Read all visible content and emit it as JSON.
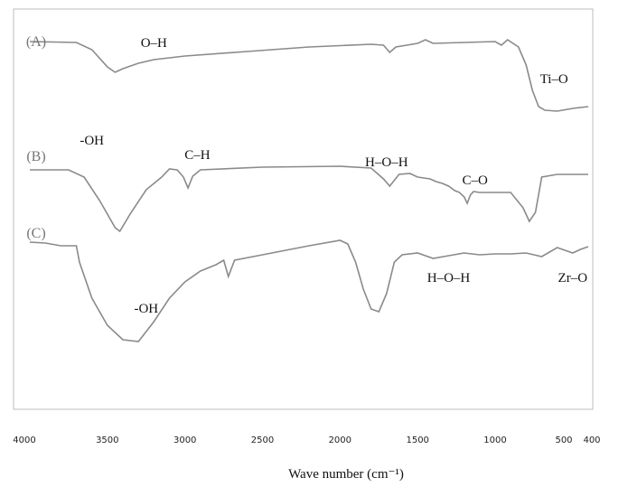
{
  "chart_data": {
    "type": "line",
    "xlabel": "Wave number (cm⁻¹)",
    "ylabel": "",
    "xlim": [
      4000,
      400
    ],
    "x_reversed": true,
    "grid": false,
    "ticks": [
      {
        "value": 4000,
        "label": "4000"
      },
      {
        "value": 3500,
        "label": "3500"
      },
      {
        "value": 3000,
        "label": "3000"
      },
      {
        "value": 2500,
        "label": "2500"
      },
      {
        "value": 2000,
        "label": "2000"
      },
      {
        "value": 1500,
        "label": "1500"
      },
      {
        "value": 1000,
        "label": "1000"
      },
      {
        "value": 500,
        "label": "500"
      },
      {
        "value": 400,
        "label": "400"
      }
    ],
    "series": [
      {
        "name": "(A)",
        "points": [
          [
            4000,
            46
          ],
          [
            3700,
            47
          ],
          [
            3600,
            55
          ],
          [
            3500,
            74
          ],
          [
            3450,
            80
          ],
          [
            3400,
            76
          ],
          [
            3300,
            70
          ],
          [
            3200,
            66
          ],
          [
            3000,
            62
          ],
          [
            2600,
            57
          ],
          [
            2200,
            52
          ],
          [
            1800,
            49
          ],
          [
            1720,
            50
          ],
          [
            1680,
            58
          ],
          [
            1640,
            52
          ],
          [
            1500,
            48
          ],
          [
            1450,
            44
          ],
          [
            1400,
            48
          ],
          [
            1200,
            47
          ],
          [
            1000,
            46
          ],
          [
            960,
            50
          ],
          [
            920,
            44
          ],
          [
            850,
            52
          ],
          [
            800,
            72
          ],
          [
            760,
            100
          ],
          [
            720,
            118
          ],
          [
            680,
            122
          ],
          [
            600,
            123
          ],
          [
            500,
            120
          ],
          [
            400,
            118
          ]
        ],
        "annotations": [
          {
            "text": "O–H",
            "x": 3200,
            "y": 52
          },
          {
            "text": "Ti–O",
            "x": 620,
            "y": 92
          }
        ]
      },
      {
        "name": "(B)",
        "points": [
          [
            4000,
            188
          ],
          [
            3750,
            188
          ],
          [
            3650,
            196
          ],
          [
            3550,
            222
          ],
          [
            3450,
            252
          ],
          [
            3420,
            256
          ],
          [
            3350,
            236
          ],
          [
            3250,
            210
          ],
          [
            3150,
            196
          ],
          [
            3100,
            187
          ],
          [
            3050,
            188
          ],
          [
            3010,
            196
          ],
          [
            2980,
            208
          ],
          [
            2950,
            195
          ],
          [
            2900,
            188
          ],
          [
            2500,
            185
          ],
          [
            2000,
            184
          ],
          [
            1800,
            186
          ],
          [
            1720,
            198
          ],
          [
            1680,
            206
          ],
          [
            1620,
            193
          ],
          [
            1550,
            192
          ],
          [
            1500,
            196
          ],
          [
            1420,
            198
          ],
          [
            1380,
            201
          ],
          [
            1340,
            203
          ],
          [
            1300,
            206
          ],
          [
            1260,
            211
          ],
          [
            1230,
            213
          ],
          [
            1200,
            218
          ],
          [
            1180,
            225
          ],
          [
            1160,
            216
          ],
          [
            1140,
            212
          ],
          [
            1100,
            213
          ],
          [
            1000,
            213
          ],
          [
            900,
            213
          ],
          [
            820,
            230
          ],
          [
            780,
            245
          ],
          [
            740,
            235
          ],
          [
            700,
            196
          ],
          [
            600,
            193
          ],
          [
            400,
            193
          ]
        ],
        "annotations": [
          {
            "text": "-OH",
            "x": 3600,
            "y": 160
          },
          {
            "text": "C–H",
            "x": 2920,
            "y": 176
          },
          {
            "text": "H–O–H",
            "x": 1700,
            "y": 184
          },
          {
            "text": "C–O",
            "x": 1130,
            "y": 204
          }
        ]
      },
      {
        "name": "(C)",
        "points": [
          [
            4000,
            268
          ],
          [
            3900,
            269
          ],
          [
            3800,
            272
          ],
          [
            3700,
            272
          ],
          [
            3680,
            290
          ],
          [
            3600,
            330
          ],
          [
            3500,
            360
          ],
          [
            3400,
            376
          ],
          [
            3300,
            378
          ],
          [
            3200,
            356
          ],
          [
            3100,
            330
          ],
          [
            3000,
            312
          ],
          [
            2900,
            300
          ],
          [
            2800,
            293
          ],
          [
            2750,
            288
          ],
          [
            2720,
            306
          ],
          [
            2680,
            288
          ],
          [
            2500,
            282
          ],
          [
            2200,
            272
          ],
          [
            2000,
            266
          ],
          [
            1950,
            270
          ],
          [
            1900,
            290
          ],
          [
            1850,
            320
          ],
          [
            1800,
            342
          ],
          [
            1750,
            345
          ],
          [
            1700,
            325
          ],
          [
            1650,
            290
          ],
          [
            1600,
            282
          ],
          [
            1500,
            280
          ],
          [
            1400,
            286
          ],
          [
            1300,
            283
          ],
          [
            1200,
            280
          ],
          [
            1100,
            282
          ],
          [
            1000,
            281
          ],
          [
            900,
            281
          ],
          [
            800,
            280
          ],
          [
            700,
            284
          ],
          [
            600,
            274
          ],
          [
            500,
            280
          ],
          [
            450,
            276
          ],
          [
            400,
            273
          ]
        ],
        "annotations": [
          {
            "text": "-OH",
            "x": 3250,
            "y": 346
          },
          {
            "text": "H–O–H",
            "x": 1300,
            "y": 312
          },
          {
            "text": "Zr–O",
            "x": 500,
            "y": 312
          }
        ]
      }
    ]
  }
}
